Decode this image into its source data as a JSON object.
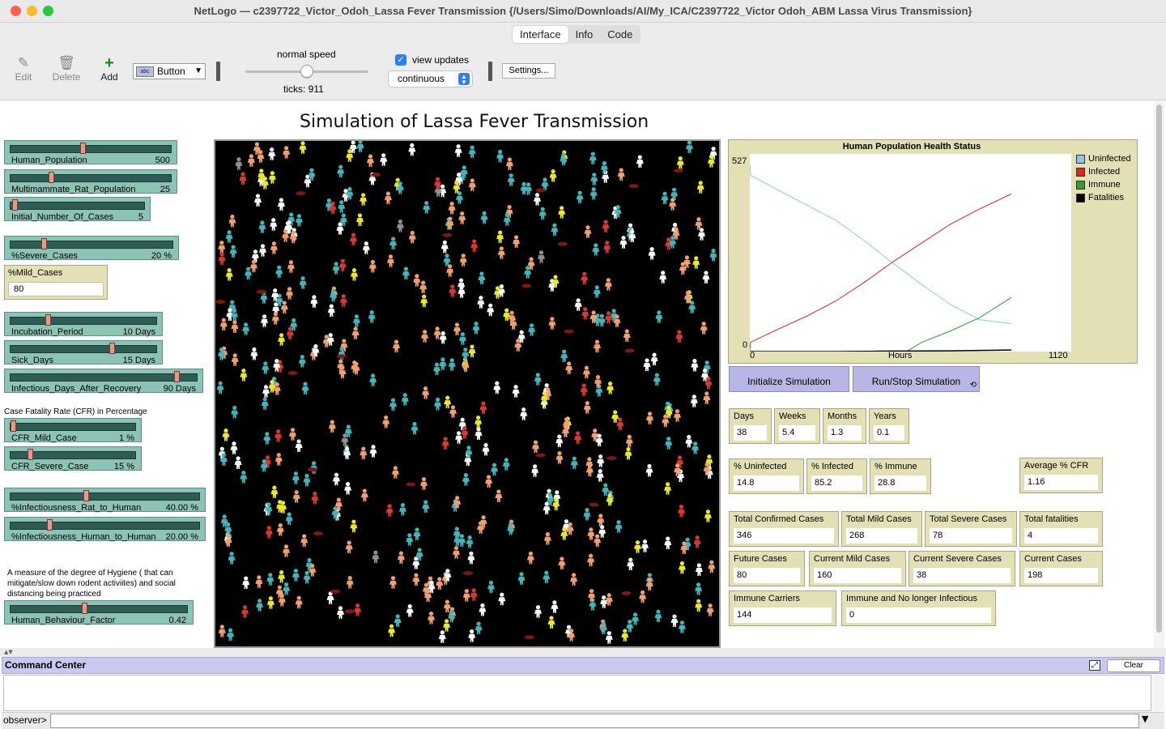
{
  "window": {
    "title": "NetLogo — c2397722_Victor_Odoh_Lassa Fever Transmission {/Users/Simo/Downloads/AI/My_ICA/C2397722_Victor Odoh_ABM Lassa Virus Transmission}"
  },
  "tabs": [
    {
      "label": "Interface",
      "active": true
    },
    {
      "label": "Info",
      "active": false
    },
    {
      "label": "Code",
      "active": false
    }
  ],
  "toolbar": {
    "edit_label": "Edit",
    "delete_label": "Delete",
    "add_label": "Add",
    "widget_type": "Button",
    "speed_label": "normal speed",
    "speed_fraction": 0.5,
    "ticks_label": "ticks: 911",
    "view_updates_label": "view updates",
    "view_updates_checked": true,
    "update_mode": "continuous",
    "settings_label": "Settings..."
  },
  "model_title": "Simulation of Lassa Fever Transmission",
  "sliders": [
    {
      "name": "Human_Population",
      "value": "500",
      "fraction": 0.45
    },
    {
      "name": "Multimammate_Rat_Population",
      "value": "25",
      "fraction": 0.25
    },
    {
      "name": "Initial_Number_Of_Cases",
      "value": "5",
      "fraction": 0.02
    },
    {
      "name": "%Severe_Cases",
      "value": "20 %",
      "fraction": 0.2
    },
    {
      "name": "Incubation_Period",
      "value": "10 Days",
      "fraction": 0.25
    },
    {
      "name": "Sick_Days",
      "value": "15 Days",
      "fraction": 0.7
    },
    {
      "name": "Infectious_Days_After_Recovery",
      "value": "90 Days",
      "fraction": 0.9
    },
    {
      "name": "CFR_Mild_Case",
      "value": "1 %",
      "fraction": 0.01
    },
    {
      "name": "CFR_Severe_Case",
      "value": "15 %",
      "fraction": 0.15
    },
    {
      "name": "%Infectiousness_Rat_to_Human",
      "value": "40.00 %",
      "fraction": 0.4
    },
    {
      "name": "%Infectiousness_Human_to_Human",
      "value": "20.00 %",
      "fraction": 0.2
    },
    {
      "name": "Human_Behaviour_Factor",
      "value": "0.42",
      "fraction": 0.42
    }
  ],
  "mild_cases_input": {
    "label": "%Mild_Cases",
    "value": "80"
  },
  "cfr_note": "Case Fatality Rate (CFR) in Percentage",
  "hygiene_note": "A measure of the degree of Hygiene ( that can mitigate/slow down rodent activiites) and social distancing being practiced",
  "plot": {
    "title": "Human Population Health Status",
    "y_max_label": "527",
    "y_min_label": "0",
    "x_min_label": "0",
    "x_max_label": "1120",
    "x_axis_label": "Hours"
  },
  "chart_data": {
    "type": "line",
    "title": "Human Population Health Status",
    "xlabel": "Hours",
    "ylabel": "",
    "xlim": [
      0,
      1120
    ],
    "ylim": [
      0,
      527
    ],
    "legend_position": "right",
    "series": [
      {
        "name": "Uninfected",
        "color": "#8ec7e6",
        "x": [
          0,
          3,
          100,
          200,
          300,
          400,
          500,
          600,
          700,
          800,
          911
        ],
        "y": [
          500,
          470,
          430,
          390,
          350,
          295,
          235,
          178,
          125,
          85,
          74
        ]
      },
      {
        "name": "Infected",
        "color": "#d42a2a",
        "x": [
          0,
          3,
          100,
          200,
          300,
          400,
          500,
          600,
          700,
          800,
          911
        ],
        "y": [
          5,
          25,
          60,
          95,
          135,
          185,
          240,
          290,
          340,
          380,
          420
        ]
      },
      {
        "name": "Immune",
        "color": "#3a9a3a",
        "x": [
          0,
          100,
          400,
          450,
          550,
          600,
          700,
          800,
          911
        ],
        "y": [
          0,
          0,
          0,
          2,
          2,
          25,
          55,
          90,
          144
        ]
      },
      {
        "name": "Fatalities",
        "color": "#000000",
        "x": [
          0,
          300,
          500,
          700,
          911
        ],
        "y": [
          0,
          0,
          1,
          2,
          4
        ]
      }
    ]
  },
  "buttons": {
    "initialize": "Initialize Simulation",
    "run_stop": "Run/Stop Simulation",
    "forever_icon": "forever-icon"
  },
  "monitors": [
    {
      "key": "days",
      "label": "Days",
      "value": "38"
    },
    {
      "key": "weeks",
      "label": "Weeks",
      "value": "5.4"
    },
    {
      "key": "months",
      "label": "Months",
      "value": "1.3"
    },
    {
      "key": "years",
      "label": "Years",
      "value": "0.1"
    },
    {
      "key": "pct-uninfected",
      "label": "% Uninfected",
      "value": "14.8"
    },
    {
      "key": "pct-infected",
      "label": "% Infected",
      "value": "85.2"
    },
    {
      "key": "pct-immune",
      "label": "% Immune",
      "value": "28.8"
    },
    {
      "key": "average-cfr",
      "label": "Average % CFR",
      "value": "1.16"
    },
    {
      "key": "total-confirmed",
      "label": "Total Confirmed Cases",
      "value": "346"
    },
    {
      "key": "total-mild",
      "label": "Total Mild Cases",
      "value": "268"
    },
    {
      "key": "total-severe",
      "label": "Total Severe Cases",
      "value": "78"
    },
    {
      "key": "total-fatalities",
      "label": "Total fatalities",
      "value": "4"
    },
    {
      "key": "future-cases",
      "label": "Future Cases",
      "value": "80"
    },
    {
      "key": "current-mild",
      "label": "Current Mild Cases",
      "value": "160"
    },
    {
      "key": "current-severe",
      "label": "Current Severe Cases",
      "value": "38"
    },
    {
      "key": "current-cases",
      "label": "Current Cases",
      "value": "198"
    },
    {
      "key": "immune-carriers",
      "label": "Immune Carriers",
      "value": "144"
    },
    {
      "key": "immune-not-infectious",
      "label": "Immune and No longer Infectious",
      "value": "0"
    }
  ],
  "command_center": {
    "title": "Command Center",
    "clear_label": "Clear",
    "observer_label": "observer>",
    "input_value": ""
  },
  "colors": {
    "slider": "#8dc3b6",
    "input_box": "#e3e0b6",
    "button": "#b8b6e4",
    "world_bg": "#000000",
    "agent_colors": [
      "#ffffff",
      "#45b3b8",
      "#f0a070",
      "#e8e832",
      "#d43a32",
      "#909090"
    ],
    "rat_color": "#7a1818"
  }
}
